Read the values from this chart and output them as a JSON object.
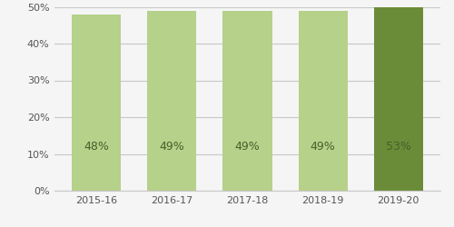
{
  "categories": [
    "2015-16",
    "2016-17",
    "2017-18",
    "2018-19",
    "2019-20"
  ],
  "values": [
    48,
    49,
    49,
    49,
    53
  ],
  "bar_colors": [
    "#b5d18a",
    "#b5d18a",
    "#b5d18a",
    "#b5d18a",
    "#6a8c38"
  ],
  "label_color": "#4a5e2a",
  "label_fontsize": 9,
  "tick_fontsize": 8,
  "ylim": [
    0,
    50
  ],
  "yticks": [
    0,
    10,
    20,
    30,
    40,
    50
  ],
  "background_color": "#f5f5f5",
  "grid_color": "#c8c8c8",
  "bar_width": 0.65
}
